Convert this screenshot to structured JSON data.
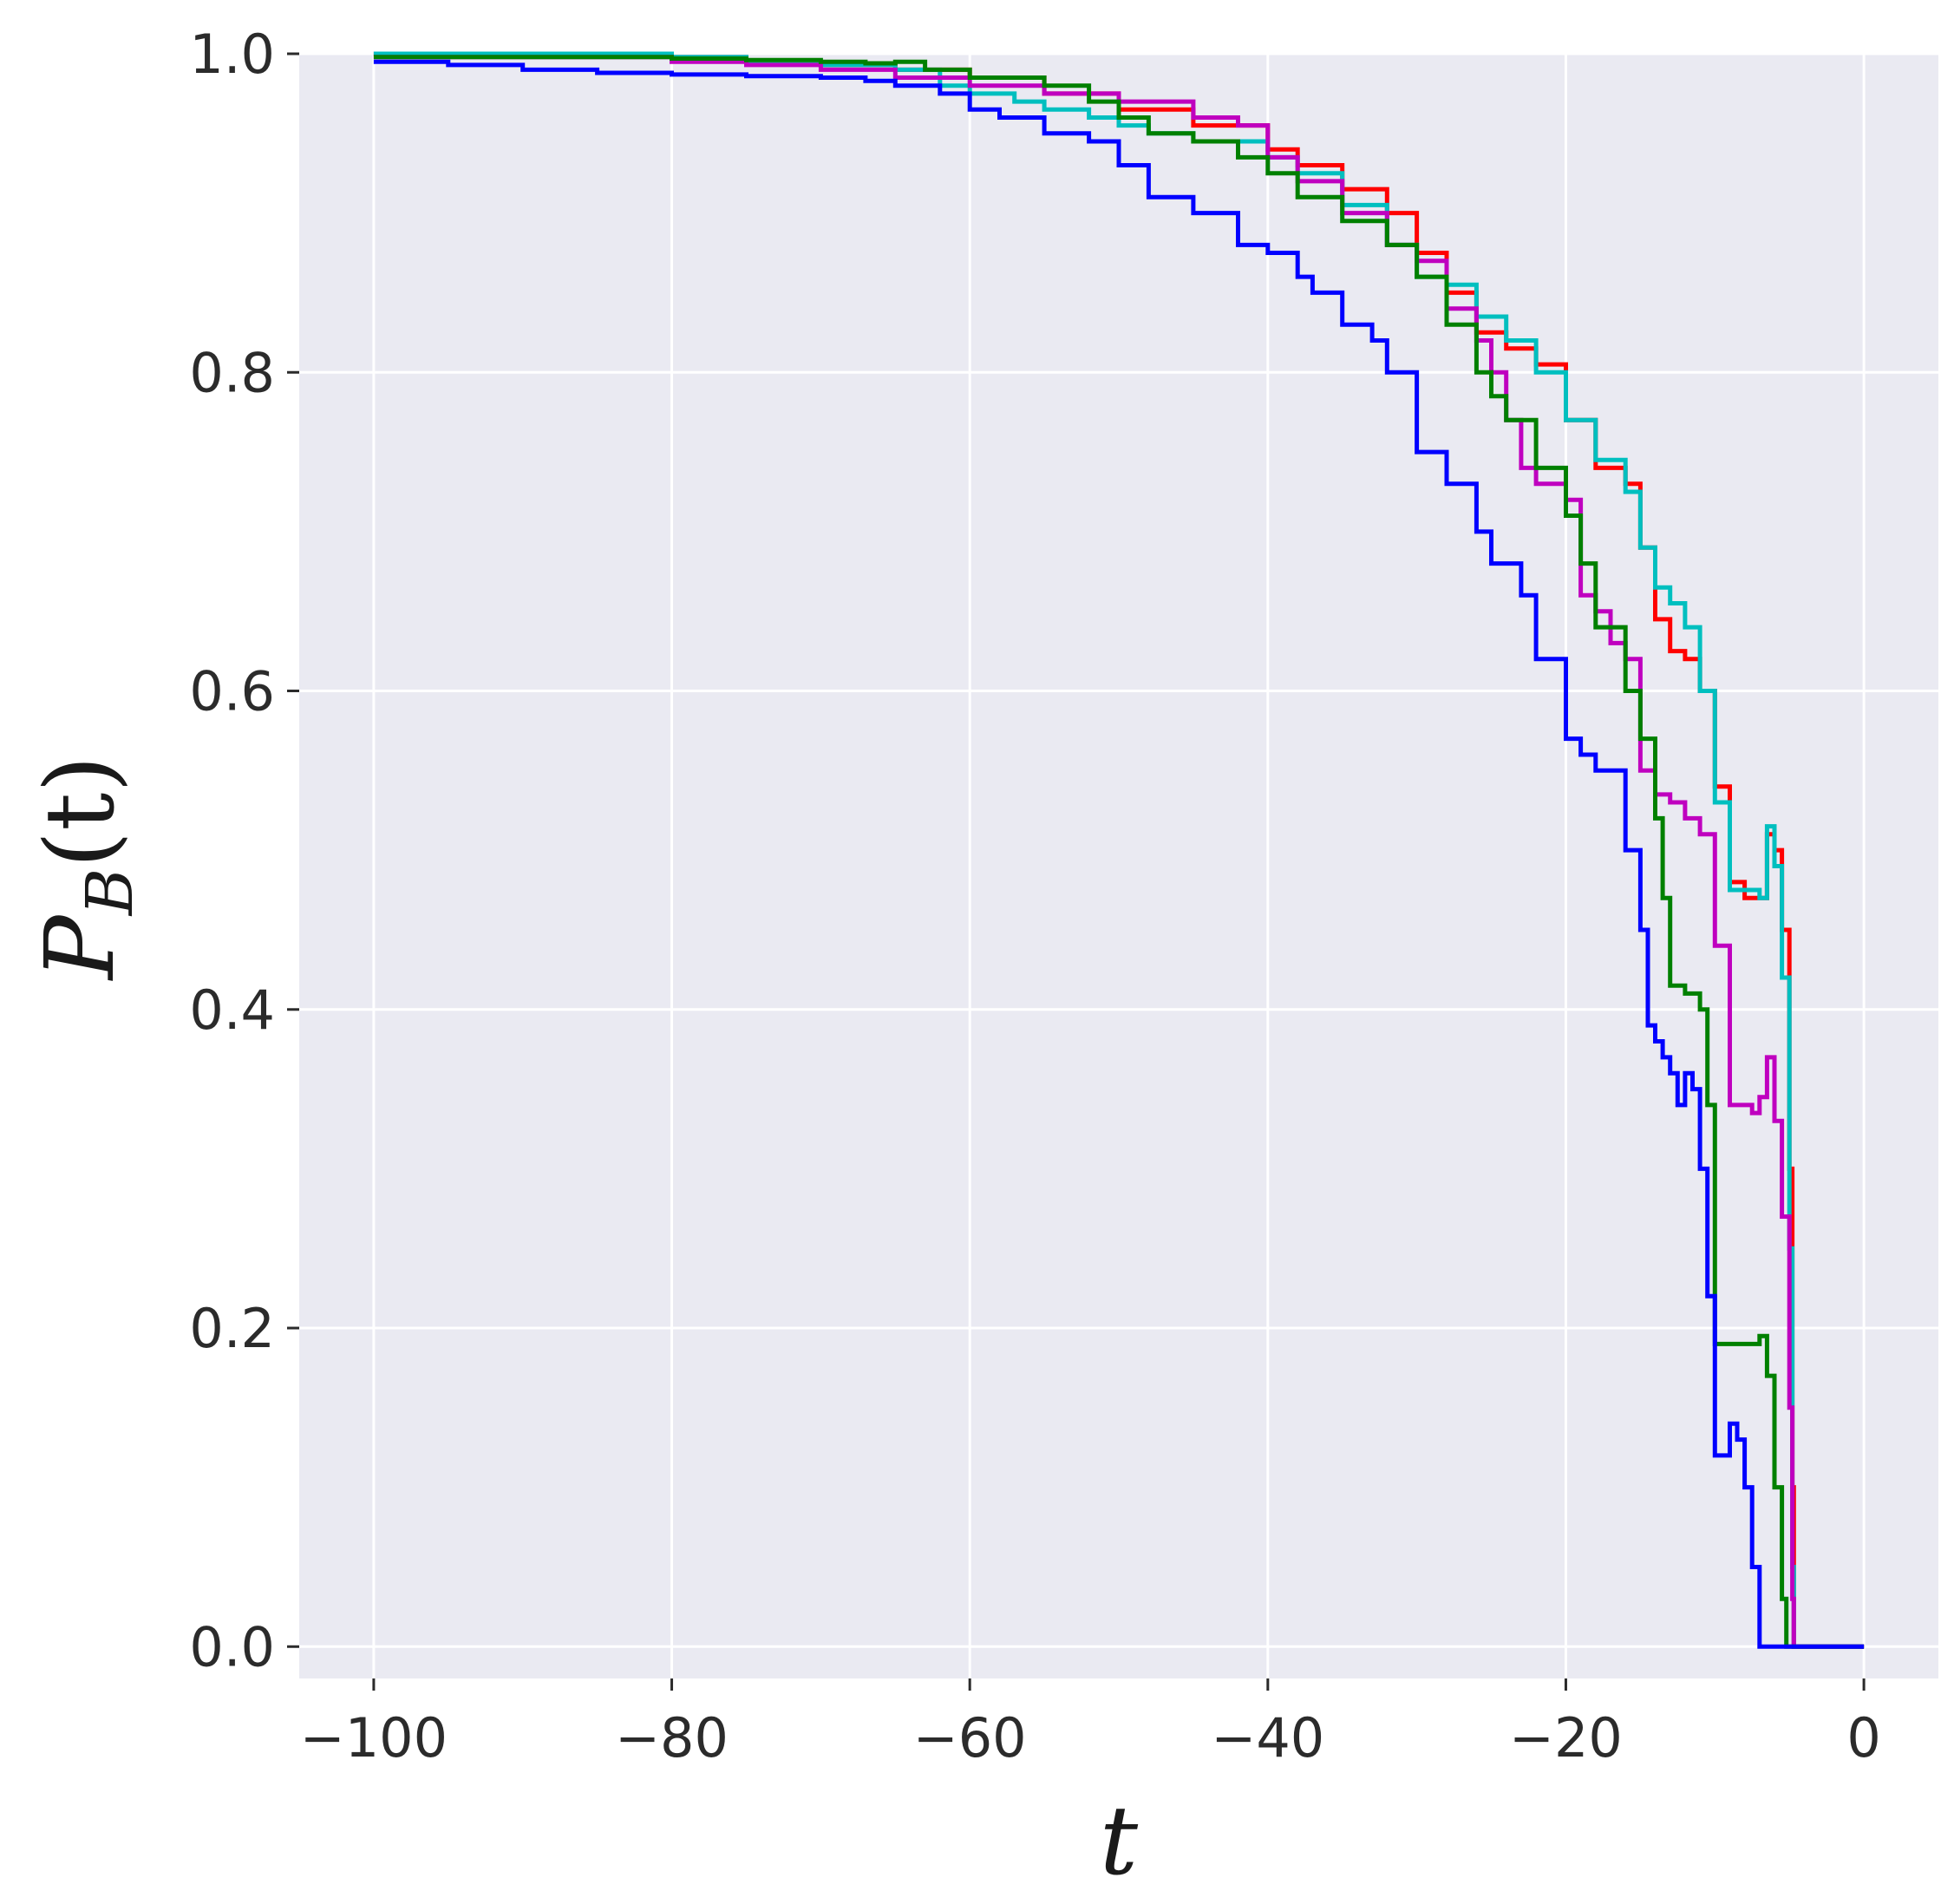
{
  "chart_data": {
    "type": "line",
    "title": "",
    "xlabel": "t",
    "ylabel": "P",
    "ylabel_sub": "B",
    "ylabel_arg": "(t)",
    "xlim": [
      -105,
      5
    ],
    "ylim": [
      -0.02,
      1.0
    ],
    "x_ticks": [
      -100,
      -80,
      -60,
      -40,
      -20,
      0
    ],
    "x_tick_labels": [
      "−100",
      "−80",
      "−60",
      "−40",
      "−20",
      "0"
    ],
    "y_ticks": [
      0.0,
      0.2,
      0.4,
      0.6,
      0.8,
      1.0
    ],
    "y_tick_labels": [
      "0.0",
      "0.2",
      "0.4",
      "0.6",
      "0.8",
      "1.0"
    ],
    "grid": true,
    "background": "#eaeaf2",
    "grid_color": "#ffffff",
    "series": [
      {
        "color": "#ff0000",
        "x": [
          -100,
          -80,
          -75,
          -70,
          -65,
          -60,
          -55,
          -50,
          -45,
          -40,
          -38,
          -35,
          -32,
          -30,
          -28,
          -26,
          -24,
          -22,
          -20,
          -18,
          -16,
          -15,
          -14,
          -13,
          -12,
          -11,
          -10,
          -9,
          -8,
          -7,
          -6.5,
          -6,
          -5.5,
          -5,
          -4.8,
          -4.7,
          -4.5,
          -4,
          -2,
          0
        ],
        "y": [
          1.0,
          0.998,
          0.995,
          0.993,
          0.99,
          0.985,
          0.975,
          0.965,
          0.955,
          0.94,
          0.93,
          0.915,
          0.9,
          0.875,
          0.85,
          0.825,
          0.815,
          0.805,
          0.77,
          0.74,
          0.73,
          0.69,
          0.645,
          0.625,
          0.62,
          0.6,
          0.54,
          0.48,
          0.47,
          0.47,
          0.51,
          0.5,
          0.45,
          0.3,
          0.1,
          0.0,
          0.0,
          0.0,
          0.0,
          0.0
        ]
      },
      {
        "color": "#00bfbf",
        "x": [
          -100,
          -80,
          -75,
          -70,
          -65,
          -62,
          -60,
          -57,
          -55,
          -52,
          -50,
          -48,
          -45,
          -40,
          -38,
          -35,
          -32,
          -30,
          -28,
          -26,
          -24,
          -22,
          -20,
          -18,
          -16,
          -15,
          -14,
          -13,
          -12,
          -11,
          -10,
          -9,
          -8,
          -7,
          -6.5,
          -6,
          -5.5,
          -5,
          -4.8,
          -4.7,
          -4.5,
          -4,
          -2,
          0
        ],
        "y": [
          1.0,
          0.998,
          0.995,
          0.993,
          0.99,
          0.98,
          0.975,
          0.97,
          0.965,
          0.96,
          0.955,
          0.95,
          0.945,
          0.935,
          0.925,
          0.905,
          0.88,
          0.86,
          0.855,
          0.835,
          0.82,
          0.8,
          0.77,
          0.745,
          0.725,
          0.69,
          0.665,
          0.655,
          0.64,
          0.6,
          0.53,
          0.475,
          0.475,
          0.47,
          0.515,
          0.49,
          0.42,
          0.25,
          0.05,
          0.0,
          0.0,
          0.0,
          0.0,
          0.0
        ]
      },
      {
        "color": "#bf00bf",
        "x": [
          -100,
          -80,
          -75,
          -70,
          -65,
          -60,
          -55,
          -50,
          -45,
          -42,
          -40,
          -38,
          -35,
          -32,
          -30,
          -28,
          -26,
          -25,
          -24,
          -23,
          -22,
          -20,
          -19,
          -18,
          -17,
          -16,
          -15,
          -14,
          -13,
          -12,
          -11,
          -10,
          -9,
          -8,
          -7.5,
          -7,
          -6.5,
          -6,
          -5.5,
          -5,
          -4.8,
          -4.7,
          -4.5,
          -4,
          -2,
          0
        ],
        "y": [
          0.998,
          0.995,
          0.993,
          0.99,
          0.985,
          0.98,
          0.975,
          0.97,
          0.96,
          0.955,
          0.935,
          0.92,
          0.9,
          0.88,
          0.87,
          0.84,
          0.82,
          0.8,
          0.77,
          0.74,
          0.73,
          0.72,
          0.66,
          0.65,
          0.63,
          0.62,
          0.55,
          0.535,
          0.53,
          0.52,
          0.51,
          0.44,
          0.34,
          0.34,
          0.335,
          0.345,
          0.37,
          0.33,
          0.27,
          0.15,
          0.03,
          0.0,
          0.0,
          0.0,
          0.0,
          0.0
        ]
      },
      {
        "color": "#008000",
        "x": [
          -100,
          -80,
          -75,
          -70,
          -67,
          -65,
          -63,
          -60,
          -55,
          -52,
          -50,
          -48,
          -45,
          -42,
          -40,
          -38,
          -35,
          -32,
          -30,
          -28,
          -26,
          -25,
          -24,
          -22,
          -20,
          -19,
          -18,
          -16,
          -15,
          -14,
          -13.5,
          -13,
          -12,
          -11,
          -10.5,
          -10,
          -9,
          -8,
          -7,
          -6.5,
          -6,
          -5.5,
          -5.2,
          -5,
          -4.5,
          -4,
          -2,
          0
        ],
        "y": [
          0.998,
          0.997,
          0.996,
          0.995,
          0.994,
          0.995,
          0.99,
          0.985,
          0.98,
          0.97,
          0.96,
          0.95,
          0.945,
          0.935,
          0.925,
          0.91,
          0.895,
          0.88,
          0.86,
          0.83,
          0.8,
          0.785,
          0.77,
          0.74,
          0.71,
          0.68,
          0.64,
          0.6,
          0.57,
          0.52,
          0.47,
          0.415,
          0.41,
          0.4,
          0.34,
          0.19,
          0.19,
          0.19,
          0.195,
          0.17,
          0.1,
          0.03,
          0.0,
          0.0,
          0.0,
          0.0,
          0.0,
          0.0
        ]
      },
      {
        "color": "#0000ff",
        "x": [
          -100,
          -95,
          -90,
          -85,
          -80,
          -75,
          -70,
          -67,
          -65,
          -62,
          -60,
          -58,
          -55,
          -52,
          -50,
          -48,
          -45,
          -42,
          -40,
          -38,
          -37,
          -35,
          -33,
          -32,
          -30,
          -28,
          -26,
          -25,
          -24,
          -23,
          -22,
          -20,
          -19,
          -18,
          -16,
          -15,
          -14.5,
          -14,
          -13.5,
          -13,
          -12.5,
          -12,
          -11.5,
          -11,
          -10.5,
          -10,
          -9.5,
          -9,
          -8.5,
          -8,
          -7.5,
          -7,
          -6.8,
          -6.5,
          -6,
          -4,
          -2,
          0
        ],
        "y": [
          0.995,
          0.993,
          0.99,
          0.988,
          0.987,
          0.986,
          0.985,
          0.983,
          0.98,
          0.975,
          0.965,
          0.96,
          0.95,
          0.945,
          0.93,
          0.91,
          0.9,
          0.88,
          0.875,
          0.86,
          0.85,
          0.83,
          0.82,
          0.8,
          0.75,
          0.73,
          0.7,
          0.68,
          0.68,
          0.66,
          0.62,
          0.57,
          0.56,
          0.55,
          0.5,
          0.45,
          0.39,
          0.38,
          0.37,
          0.36,
          0.34,
          0.36,
          0.35,
          0.3,
          0.22,
          0.12,
          0.12,
          0.14,
          0.13,
          0.1,
          0.05,
          0.0,
          0.0,
          0.0,
          0.0,
          0.0,
          0.0,
          0.0
        ]
      }
    ]
  }
}
